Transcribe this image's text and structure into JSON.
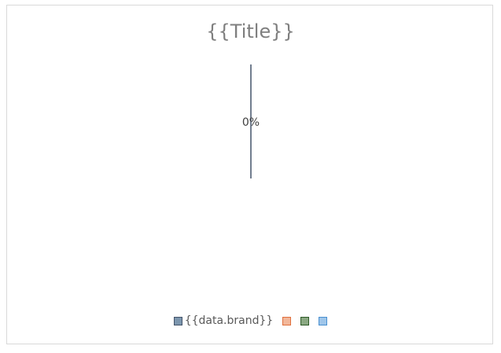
{
  "chart_data": {
    "type": "pie",
    "title": "{{Title}}",
    "categories": [
      "{{data.brand}}",
      "",
      "",
      ""
    ],
    "values": [
      0,
      0,
      0,
      0
    ],
    "data_labels": [
      "0%"
    ],
    "legend_position": "bottom",
    "colors": [
      {
        "fill": "#7c96ae",
        "stroke": "#44546a"
      },
      {
        "fill": "#f2b79a",
        "stroke": "#e0703d"
      },
      {
        "fill": "#8aa882",
        "stroke": "#2e5b27"
      },
      {
        "fill": "#9fc6ea",
        "stroke": "#4a90d0"
      }
    ]
  }
}
